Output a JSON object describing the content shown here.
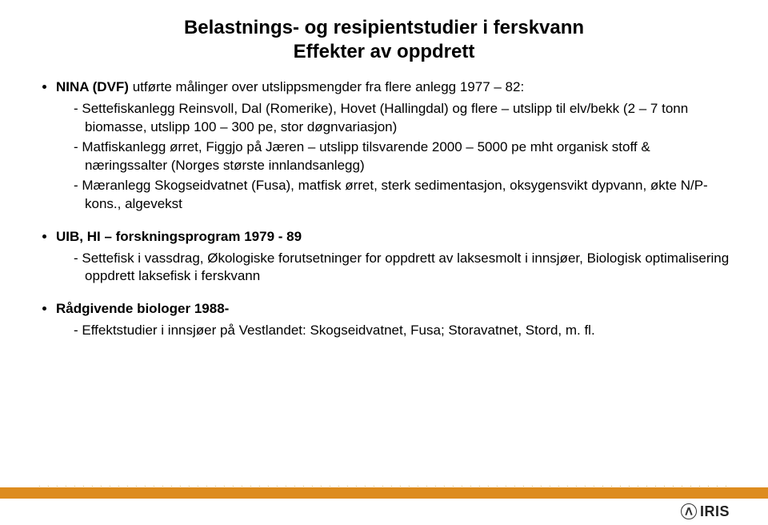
{
  "title_line1": "Belastnings- og resipientstudier i ferskvann",
  "title_line2": "Effekter av oppdrett",
  "bullets": [
    {
      "lead_bold": "NINA (DVF)",
      "lead_rest": " utførte målinger over utslippsmengder fra flere anlegg 1977 – 82:",
      "subs": [
        "Settefiskanlegg Reinsvoll, Dal (Romerike), Hovet (Hallingdal) og flere – utslipp til elv/bekk (2 – 7 tonn biomasse, utslipp 100 – 300 pe, stor døgnvariasjon)",
        "Matfiskanlegg ørret, Figgjo på Jæren – utslipp tilsvarende 2000 – 5000 pe mht organisk stoff & næringssalter (Norges største innlandsanlegg)",
        "Mæranlegg Skogseidvatnet (Fusa), matfisk ørret, sterk sedimentasjon, oksygensvikt dypvann, økte N/P-kons., algevekst"
      ]
    },
    {
      "lead_bold": "UIB, HI – forskningsprogram 1979 - 89",
      "lead_rest": "",
      "subs": [
        "Settefisk i vassdrag, Økologiske forutsetninger for oppdrett av laksesmolt i innsjøer, Biologisk optimalisering oppdrett laksefisk i ferskvann"
      ]
    },
    {
      "lead_bold": "Rådgivende biologer 1988-",
      "lead_rest": "",
      "subs": [
        "Effektstudier i innsjøer på Vestlandet: Skogseidvatnet, Fusa; Storavatnet, Stord, m. fl."
      ]
    }
  ],
  "logo_text": "IRIS",
  "colors": {
    "orange_bar": "#dd8c1f",
    "dots": "#cfa93e",
    "text": "#000000",
    "background": "#ffffff"
  }
}
